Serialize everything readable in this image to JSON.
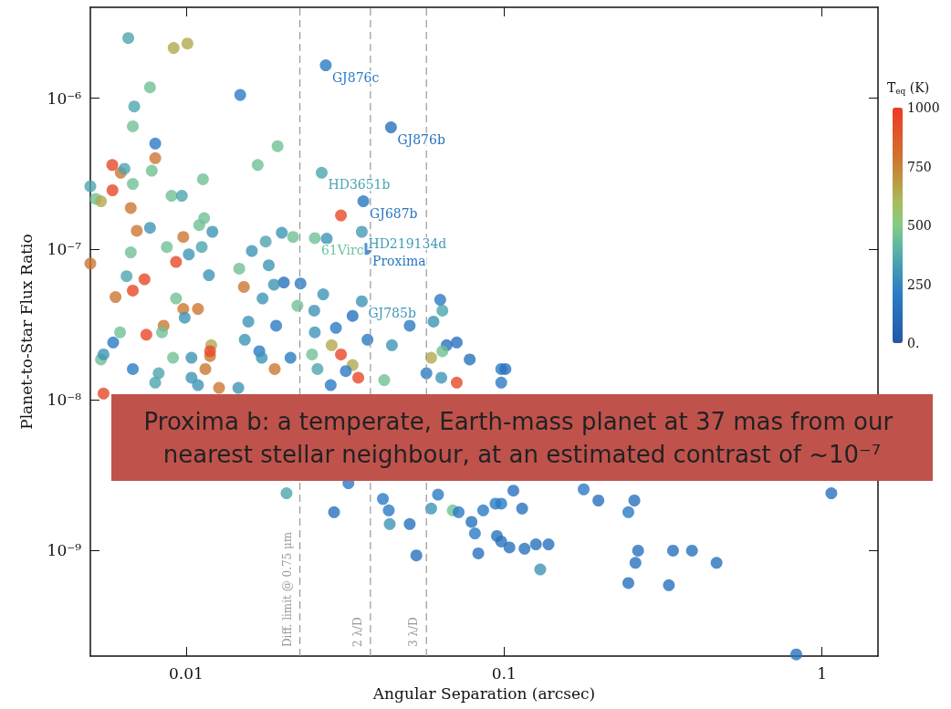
{
  "chart_data": {
    "type": "scatter",
    "xlabel": "Angular Separation (arcsec)",
    "ylabel": "Planet-to-Star Flux Ratio",
    "clabel": "T$_{eq}$ (K)",
    "log": "xy",
    "marker": "circle",
    "xlim": [
      0.005,
      1.5
    ],
    "ylim": [
      2e-10,
      4e-06
    ],
    "xticks": [
      0.01,
      0.1,
      1
    ],
    "yticks": [
      {
        "value": 1e-09,
        "label": "10⁻⁹"
      },
      {
        "value": 1e-08,
        "label": "10⁻⁸"
      },
      {
        "value": 1e-07,
        "label": "10⁻⁷"
      },
      {
        "value": 1e-06,
        "label": "10⁻⁶"
      }
    ],
    "clim": [
      0,
      1000
    ],
    "cticks": [
      {
        "value": 0,
        "label": "0."
      },
      250,
      500,
      750,
      1000
    ],
    "x": [
      0.0275,
      0.0441,
      0.0267,
      0.0361,
      0.0357,
      0.0254,
      0.0368,
      0.0357,
      0.00658,
      0.00914,
      0.0101,
      0.0077,
      0.0148,
      0.00687,
      0.0068,
      0.008,
      0.0194,
      0.008,
      0.00586,
      0.00623,
      0.0064,
      0.0078,
      0.0168,
      0.0068,
      0.0113,
      0.005,
      0.00587,
      0.0052,
      0.0054,
      0.009,
      0.0097,
      0.0067,
      0.0114,
      0.0307,
      0.011,
      0.0077,
      0.007,
      0.0121,
      0.0098,
      0.02,
      0.0178,
      0.0217,
      0.0087,
      0.0067,
      0.005,
      0.0112,
      0.0102,
      0.0161,
      0.0277,
      0.0093,
      0.0147,
      0.0182,
      0.0065,
      0.0074,
      0.0118,
      0.0152,
      0.0203,
      0.0229,
      0.0189,
      0.027,
      0.006,
      0.0068,
      0.0098,
      0.0109,
      0.0093,
      0.0174,
      0.0099,
      0.0224,
      0.0253,
      0.0334,
      0.0157,
      0.0085,
      0.0084,
      0.0062,
      0.0192,
      0.0075,
      0.0059,
      0.0296,
      0.0153,
      0.0254,
      0.012,
      0.017,
      0.0287,
      0.0054,
      0.0119,
      0.0055,
      0.0104,
      0.0091,
      0.0173,
      0.0307,
      0.0249,
      0.0213,
      0.0119,
      0.0334,
      0.0115,
      0.019,
      0.0068,
      0.0082,
      0.0259,
      0.0318,
      0.042,
      0.0348,
      0.0104,
      0.008,
      0.0285,
      0.0055,
      0.0109,
      0.0127,
      0.0146,
      0.063,
      0.064,
      0.06,
      0.066,
      0.071,
      0.064,
      0.059,
      0.078,
      0.071,
      0.0635,
      0.098,
      0.098,
      0.0444,
      0.0372,
      0.0505,
      0.057,
      0.0207,
      0.0292,
      0.0324,
      0.0416,
      0.0434,
      0.0437,
      0.0505,
      0.053,
      0.059,
      0.062,
      0.069,
      0.072,
      0.079,
      0.081,
      0.083,
      0.086,
      0.094,
      0.098,
      0.095,
      0.098,
      0.104,
      0.107,
      0.114,
      0.116,
      0.126,
      0.138,
      0.13,
      0.178,
      0.198,
      0.246,
      0.257,
      0.246,
      0.264,
      0.259,
      0.34,
      0.33,
      0.39,
      0.466,
      1.07,
      0.83,
      0.101
    ],
    "values": [
      1.65e-06,
      6.4e-07,
      3.2e-07,
      2.07e-07,
      1.3e-07,
      1.18e-07,
      1e-07,
      4.5e-08,
      2.5e-06,
      2.15e-06,
      2.3e-06,
      1.18e-06,
      1.05e-06,
      8.8e-07,
      6.5e-07,
      5e-07,
      4.8e-07,
      4e-07,
      3.6e-07,
      3.2e-07,
      3.4e-07,
      3.3e-07,
      3.6e-07,
      2.7e-07,
      2.9e-07,
      2.6e-07,
      2.45e-07,
      2.15e-07,
      2.07e-07,
      2.25e-07,
      2.25e-07,
      1.87e-07,
      1.6e-07,
      1.67e-07,
      1.44e-07,
      1.38e-07,
      1.32e-07,
      1.3e-07,
      1.2e-07,
      1.28e-07,
      1.12e-07,
      1.2e-07,
      1.03e-07,
      9.5e-08,
      8e-08,
      1.03e-07,
      9.2e-08,
      9.7e-08,
      1.17e-07,
      8.2e-08,
      7.4e-08,
      7.8e-08,
      6.6e-08,
      6.3e-08,
      6.7e-08,
      5.6e-08,
      6e-08,
      5.9e-08,
      5.8e-08,
      5e-08,
      4.8e-08,
      5.3e-08,
      4e-08,
      4e-08,
      4.7e-08,
      4.7e-08,
      3.5e-08,
      4.2e-08,
      3.9e-08,
      3.6e-08,
      3.3e-08,
      3.1e-08,
      2.8e-08,
      2.8e-08,
      3.1e-08,
      2.7e-08,
      2.4e-08,
      3e-08,
      2.5e-08,
      2.8e-08,
      2.3e-08,
      2.1e-08,
      2.3e-08,
      1.85e-08,
      1.95e-08,
      2e-08,
      1.9e-08,
      1.9e-08,
      1.9e-08,
      2e-08,
      2e-08,
      1.9e-08,
      2.1e-08,
      1.7e-08,
      1.6e-08,
      1.6e-08,
      1.6e-08,
      1.5e-08,
      1.6e-08,
      1.55e-08,
      1.35e-08,
      1.4e-08,
      1.4e-08,
      1.3e-08,
      1.25e-08,
      1.1e-08,
      1.25e-08,
      1.2e-08,
      1.2e-08,
      4.6e-08,
      3.9e-08,
      3.3e-08,
      2.3e-08,
      2.4e-08,
      2.1e-08,
      1.9e-08,
      1.85e-08,
      1.3e-08,
      1.4e-08,
      1.6e-08,
      1.3e-08,
      2.3e-08,
      2.5e-08,
      3.1e-08,
      1.5e-08,
      2.4e-09,
      1.8e-09,
      2.8e-09,
      2.2e-09,
      1.85e-09,
      1.5e-09,
      1.5e-09,
      9.3e-10,
      1.9e-09,
      2.35e-09,
      1.85e-09,
      1.8e-09,
      1.55e-09,
      1.3e-09,
      9.6e-10,
      1.85e-09,
      2.05e-09,
      2.05e-09,
      1.25e-09,
      1.15e-09,
      1.05e-09,
      2.5e-09,
      1.9e-09,
      1.03e-09,
      1.1e-09,
      1.1e-09,
      7.5e-10,
      2.55e-09,
      2.15e-09,
      1.8e-09,
      2.15e-09,
      6.1e-10,
      1e-09,
      8.3e-10,
      1e-09,
      5.9e-10,
      1e-09,
      8.3e-10,
      2.4e-09,
      2.05e-10,
      1.6e-08
    ],
    "cvalues": [
      200,
      150,
      350,
      180,
      320,
      450,
      180,
      300,
      350,
      650,
      650,
      450,
      200,
      350,
      450,
      200,
      450,
      780,
      950,
      780,
      350,
      450,
      450,
      450,
      450,
      350,
      950,
      450,
      650,
      450,
      350,
      780,
      450,
      950,
      450,
      300,
      780,
      300,
      780,
      300,
      350,
      450,
      450,
      450,
      780,
      350,
      300,
      300,
      300,
      950,
      450,
      300,
      350,
      950,
      300,
      780,
      150,
      200,
      300,
      300,
      780,
      950,
      780,
      780,
      450,
      300,
      300,
      450,
      300,
      150,
      300,
      780,
      450,
      450,
      200,
      950,
      200,
      200,
      300,
      300,
      650,
      200,
      650,
      450,
      780,
      300,
      300,
      450,
      300,
      950,
      450,
      200,
      950,
      650,
      780,
      780,
      200,
      350,
      350,
      200,
      450,
      950,
      300,
      350,
      200,
      950,
      300,
      780,
      300,
      200,
      350,
      300,
      150,
      150,
      450,
      650,
      150,
      950,
      300,
      200,
      200,
      300,
      200,
      200,
      200,
      350,
      150,
      200,
      200,
      200,
      300,
      150,
      150,
      300,
      200,
      450,
      200,
      150,
      200,
      150,
      200,
      200,
      200,
      150,
      150,
      150,
      150,
      150,
      150,
      150,
      150,
      300,
      200,
      150,
      200,
      150,
      150,
      150,
      150,
      150,
      150,
      150,
      150,
      150,
      150,
      150
    ],
    "ref_lines": [
      {
        "axis": "x",
        "value": 0.0228,
        "label": "Diff. limit @ 0.75 μm",
        "color": "#999999",
        "line_style": "dashed"
      },
      {
        "axis": "x",
        "value": 0.038,
        "label": "2 λ/D",
        "color": "#999999",
        "line_style": "dashed"
      },
      {
        "axis": "x",
        "value": 0.057,
        "label": "3 λ/D",
        "color": "#999999",
        "line_style": "dashed"
      }
    ],
    "annotations": [
      {
        "text": "GJ876c",
        "x": 0.0275,
        "y": 1.65e-06
      },
      {
        "text": "GJ876b",
        "x": 0.0441,
        "y": 6.4e-07
      },
      {
        "text": "HD3651b",
        "x": 0.0267,
        "y": 3.2e-07
      },
      {
        "text": "GJ687b",
        "x": 0.0361,
        "y": 2.07e-07
      },
      {
        "text": "HD219134d",
        "x": 0.0357,
        "y": 1.3e-07
      },
      {
        "text": "61Virc",
        "x": 0.0254,
        "y": 1.18e-07
      },
      {
        "text": "Proxima",
        "x": 0.0368,
        "y": 1e-07
      },
      {
        "text": "GJ785b",
        "x": 0.0357,
        "y": 4.5e-08
      },
      "Proxima b: a temperate, Earth-mass planet at 37 mas from our nearest stellar neighbour, at an estimated contrast of ~10⁻⁷"
    ]
  }
}
